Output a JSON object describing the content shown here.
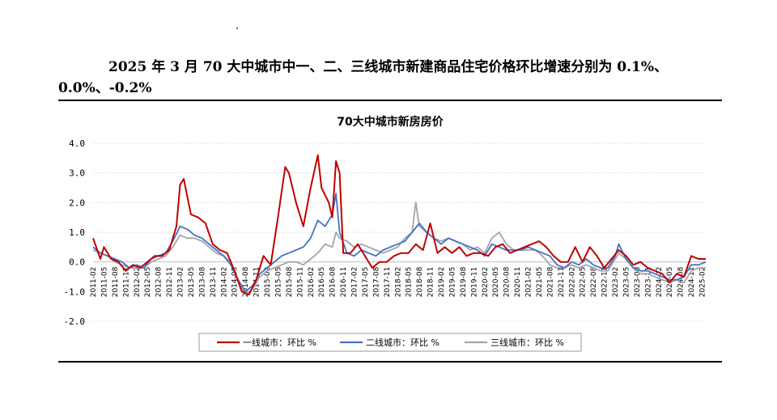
{
  "headline": {
    "line1": "2025 年 3 月 70 大中城市中一、二、三线城市新建商品住宅价格环比增速分别为 0.1%、",
    "line2": "0.0%、-0.2%"
  },
  "colors": {
    "tier1": "#c00000",
    "tier2": "#4472c4",
    "tier3": "#a5a5a5",
    "grid": "#d9d9d9"
  },
  "chart_data": {
    "type": "line",
    "title": "70大中城市新房房价",
    "ylim": [
      -2.0,
      4.0
    ],
    "yticks": [
      "4.0",
      "3.0",
      "2.0",
      "1.0",
      "0.0",
      "-1.0",
      "-2.0"
    ],
    "ytick_values": [
      4,
      3,
      2,
      1,
      0,
      -1,
      -2
    ],
    "xticks": [
      "2011-02",
      "2011-05",
      "2011-08",
      "2011-11",
      "2012-02",
      "2012-05",
      "2012-08",
      "2012-11",
      "2013-02",
      "2013-05",
      "2013-08",
      "2013-11",
      "2014-02",
      "2014-05",
      "2014-08",
      "2014-11",
      "2015-02",
      "2015-05",
      "2015-08",
      "2015-11",
      "2016-02",
      "2016-05",
      "2016-08",
      "2016-11",
      "2017-02",
      "2017-05",
      "2017-08",
      "2017-11",
      "2018-02",
      "2018-05",
      "2018-08",
      "2018-11",
      "2019-02",
      "2019-05",
      "2019-08",
      "2019-11",
      "2020-02",
      "2020-05",
      "2020-08",
      "2020-11",
      "2021-02",
      "2021-05",
      "2021-08",
      "2021-11",
      "2022-02",
      "2022-05",
      "2022-08",
      "2022-11",
      "2023-02",
      "2023-05",
      "2023-08",
      "2023-11",
      "2024-02",
      "2024-05",
      "2024-08",
      "2024-11",
      "2025-02"
    ],
    "x_start": "2011-02",
    "x_end": "2025-03",
    "grid": "horizontal",
    "legend_position": "bottom",
    "series": [
      {
        "name": "一线城市：环比 %",
        "points": [
          [
            "2011-02",
            0.8
          ],
          [
            "2011-04",
            0.1
          ],
          [
            "2011-05",
            0.5
          ],
          [
            "2011-07",
            0.1
          ],
          [
            "2011-09",
            0.0
          ],
          [
            "2011-11",
            -0.3
          ],
          [
            "2012-01",
            -0.1
          ],
          [
            "2012-03",
            -0.2
          ],
          [
            "2012-05",
            0.0
          ],
          [
            "2012-07",
            0.2
          ],
          [
            "2012-09",
            0.2
          ],
          [
            "2012-11",
            0.4
          ],
          [
            "2013-01",
            1.2
          ],
          [
            "2013-02",
            2.6
          ],
          [
            "2013-03",
            2.8
          ],
          [
            "2013-05",
            1.6
          ],
          [
            "2013-07",
            1.5
          ],
          [
            "2013-09",
            1.3
          ],
          [
            "2013-11",
            0.6
          ],
          [
            "2014-01",
            0.4
          ],
          [
            "2014-03",
            0.3
          ],
          [
            "2014-05",
            -0.3
          ],
          [
            "2014-07",
            -1.0
          ],
          [
            "2014-09",
            -1.1
          ],
          [
            "2014-11",
            -0.6
          ],
          [
            "2015-01",
            0.2
          ],
          [
            "2015-03",
            -0.1
          ],
          [
            "2015-05",
            1.5
          ],
          [
            "2015-07",
            3.2
          ],
          [
            "2015-08",
            3.0
          ],
          [
            "2015-10",
            2.0
          ],
          [
            "2015-12",
            1.2
          ],
          [
            "2016-02",
            2.5
          ],
          [
            "2016-04",
            3.6
          ],
          [
            "2016-05",
            2.5
          ],
          [
            "2016-07",
            2.0
          ],
          [
            "2016-08",
            1.5
          ],
          [
            "2016-09",
            3.4
          ],
          [
            "2016-10",
            3.0
          ],
          [
            "2016-11",
            0.3
          ],
          [
            "2017-01",
            0.3
          ],
          [
            "2017-03",
            0.6
          ],
          [
            "2017-05",
            0.2
          ],
          [
            "2017-07",
            -0.2
          ],
          [
            "2017-09",
            0.0
          ],
          [
            "2017-11",
            0.0
          ],
          [
            "2018-01",
            0.2
          ],
          [
            "2018-03",
            0.3
          ],
          [
            "2018-05",
            0.3
          ],
          [
            "2018-07",
            0.6
          ],
          [
            "2018-09",
            0.4
          ],
          [
            "2018-11",
            1.3
          ],
          [
            "2019-01",
            0.3
          ],
          [
            "2019-03",
            0.5
          ],
          [
            "2019-05",
            0.3
          ],
          [
            "2019-07",
            0.5
          ],
          [
            "2019-09",
            0.2
          ],
          [
            "2019-11",
            0.3
          ],
          [
            "2020-01",
            0.3
          ],
          [
            "2020-03",
            0.2
          ],
          [
            "2020-05",
            0.5
          ],
          [
            "2020-07",
            0.6
          ],
          [
            "2020-09",
            0.3
          ],
          [
            "2020-11",
            0.4
          ],
          [
            "2021-01",
            0.5
          ],
          [
            "2021-03",
            0.6
          ],
          [
            "2021-05",
            0.7
          ],
          [
            "2021-07",
            0.5
          ],
          [
            "2021-09",
            0.2
          ],
          [
            "2021-11",
            0.0
          ],
          [
            "2022-01",
            0.0
          ],
          [
            "2022-03",
            0.5
          ],
          [
            "2022-05",
            0.0
          ],
          [
            "2022-07",
            0.5
          ],
          [
            "2022-09",
            0.2
          ],
          [
            "2022-11",
            -0.2
          ],
          [
            "2023-01",
            0.1
          ],
          [
            "2023-03",
            0.4
          ],
          [
            "2023-05",
            0.2
          ],
          [
            "2023-07",
            -0.1
          ],
          [
            "2023-09",
            0.0
          ],
          [
            "2023-11",
            -0.2
          ],
          [
            "2024-01",
            -0.3
          ],
          [
            "2024-03",
            -0.4
          ],
          [
            "2024-05",
            -0.7
          ],
          [
            "2024-07",
            -0.4
          ],
          [
            "2024-09",
            -0.5
          ],
          [
            "2024-11",
            0.2
          ],
          [
            "2025-01",
            0.1
          ],
          [
            "2025-03",
            0.1
          ]
        ]
      },
      {
        "name": "二线城市：环比 %",
        "points": [
          [
            "2011-02",
            0.5
          ],
          [
            "2011-04",
            0.3
          ],
          [
            "2011-06",
            0.2
          ],
          [
            "2011-08",
            0.1
          ],
          [
            "2011-10",
            0.0
          ],
          [
            "2011-12",
            -0.2
          ],
          [
            "2012-02",
            -0.1
          ],
          [
            "2012-04",
            -0.2
          ],
          [
            "2012-06",
            0.1
          ],
          [
            "2012-08",
            0.2
          ],
          [
            "2012-10",
            0.3
          ],
          [
            "2012-12",
            0.7
          ],
          [
            "2013-02",
            1.2
          ],
          [
            "2013-04",
            1.1
          ],
          [
            "2013-06",
            0.9
          ],
          [
            "2013-08",
            0.8
          ],
          [
            "2013-10",
            0.6
          ],
          [
            "2013-12",
            0.4
          ],
          [
            "2014-02",
            0.2
          ],
          [
            "2014-04",
            -0.1
          ],
          [
            "2014-06",
            -0.6
          ],
          [
            "2014-08",
            -1.0
          ],
          [
            "2014-10",
            -0.8
          ],
          [
            "2014-12",
            -0.4
          ],
          [
            "2015-02",
            -0.2
          ],
          [
            "2015-04",
            0.0
          ],
          [
            "2015-06",
            0.2
          ],
          [
            "2015-08",
            0.3
          ],
          [
            "2015-10",
            0.4
          ],
          [
            "2015-12",
            0.5
          ],
          [
            "2016-02",
            0.8
          ],
          [
            "2016-04",
            1.4
          ],
          [
            "2016-06",
            1.2
          ],
          [
            "2016-08",
            1.6
          ],
          [
            "2016-09",
            2.3
          ],
          [
            "2016-10",
            1.0
          ],
          [
            "2016-12",
            0.3
          ],
          [
            "2017-02",
            0.2
          ],
          [
            "2017-04",
            0.4
          ],
          [
            "2017-06",
            0.3
          ],
          [
            "2017-08",
            0.2
          ],
          [
            "2017-10",
            0.4
          ],
          [
            "2017-12",
            0.5
          ],
          [
            "2018-02",
            0.6
          ],
          [
            "2018-04",
            0.7
          ],
          [
            "2018-06",
            1.0
          ],
          [
            "2018-08",
            1.3
          ],
          [
            "2018-10",
            1.0
          ],
          [
            "2018-12",
            0.8
          ],
          [
            "2019-02",
            0.6
          ],
          [
            "2019-04",
            0.8
          ],
          [
            "2019-06",
            0.7
          ],
          [
            "2019-08",
            0.6
          ],
          [
            "2019-10",
            0.5
          ],
          [
            "2019-12",
            0.4
          ],
          [
            "2020-02",
            0.2
          ],
          [
            "2020-04",
            0.6
          ],
          [
            "2020-06",
            0.5
          ],
          [
            "2020-08",
            0.4
          ],
          [
            "2020-10",
            0.4
          ],
          [
            "2020-12",
            0.4
          ],
          [
            "2021-02",
            0.5
          ],
          [
            "2021-04",
            0.4
          ],
          [
            "2021-06",
            0.3
          ],
          [
            "2021-08",
            0.2
          ],
          [
            "2021-10",
            -0.1
          ],
          [
            "2021-12",
            -0.2
          ],
          [
            "2022-02",
            0.0
          ],
          [
            "2022-04",
            -0.1
          ],
          [
            "2022-06",
            0.1
          ],
          [
            "2022-08",
            -0.1
          ],
          [
            "2022-10",
            -0.2
          ],
          [
            "2022-12",
            -0.2
          ],
          [
            "2023-02",
            0.2
          ],
          [
            "2023-03",
            0.6
          ],
          [
            "2023-05",
            0.1
          ],
          [
            "2023-07",
            -0.2
          ],
          [
            "2023-09",
            -0.3
          ],
          [
            "2023-11",
            -0.3
          ],
          [
            "2024-01",
            -0.4
          ],
          [
            "2024-03",
            -0.5
          ],
          [
            "2024-05",
            -0.6
          ],
          [
            "2024-07",
            -0.6
          ],
          [
            "2024-09",
            -0.5
          ],
          [
            "2024-11",
            -0.1
          ],
          [
            "2025-01",
            -0.1
          ],
          [
            "2025-03",
            0.0
          ]
        ]
      },
      {
        "name": "三线城市：环比 %",
        "points": [
          [
            "2011-02",
            0.4
          ],
          [
            "2011-04",
            0.3
          ],
          [
            "2011-06",
            0.2
          ],
          [
            "2011-08",
            0.0
          ],
          [
            "2011-10",
            -0.1
          ],
          [
            "2011-12",
            -0.2
          ],
          [
            "2012-02",
            -0.2
          ],
          [
            "2012-04",
            -0.2
          ],
          [
            "2012-06",
            0.0
          ],
          [
            "2012-08",
            0.1
          ],
          [
            "2012-10",
            0.2
          ],
          [
            "2012-12",
            0.5
          ],
          [
            "2013-02",
            0.9
          ],
          [
            "2013-04",
            0.8
          ],
          [
            "2013-06",
            0.8
          ],
          [
            "2013-08",
            0.7
          ],
          [
            "2013-10",
            0.5
          ],
          [
            "2013-12",
            0.3
          ],
          [
            "2014-02",
            0.2
          ],
          [
            "2014-04",
            0.0
          ],
          [
            "2014-06",
            -0.6
          ],
          [
            "2014-08",
            -1.1
          ],
          [
            "2014-10",
            -0.9
          ],
          [
            "2014-12",
            -0.5
          ],
          [
            "2015-02",
            -0.3
          ],
          [
            "2015-04",
            -0.2
          ],
          [
            "2015-06",
            -0.1
          ],
          [
            "2015-08",
            0.0
          ],
          [
            "2015-10",
            0.0
          ],
          [
            "2015-12",
            -0.1
          ],
          [
            "2016-02",
            0.1
          ],
          [
            "2016-04",
            0.3
          ],
          [
            "2016-06",
            0.6
          ],
          [
            "2016-08",
            0.5
          ],
          [
            "2016-09",
            1.0
          ],
          [
            "2016-10",
            0.8
          ],
          [
            "2016-12",
            0.7
          ],
          [
            "2017-02",
            0.5
          ],
          [
            "2017-04",
            0.6
          ],
          [
            "2017-06",
            0.5
          ],
          [
            "2017-08",
            0.4
          ],
          [
            "2017-10",
            0.3
          ],
          [
            "2017-12",
            0.4
          ],
          [
            "2018-02",
            0.5
          ],
          [
            "2018-04",
            0.8
          ],
          [
            "2018-06",
            1.0
          ],
          [
            "2018-07",
            2.0
          ],
          [
            "2018-08",
            1.2
          ],
          [
            "2018-10",
            1.0
          ],
          [
            "2018-12",
            0.8
          ],
          [
            "2019-02",
            0.7
          ],
          [
            "2019-04",
            0.8
          ],
          [
            "2019-06",
            0.7
          ],
          [
            "2019-08",
            0.6
          ],
          [
            "2019-10",
            0.4
          ],
          [
            "2019-12",
            0.5
          ],
          [
            "2020-02",
            0.3
          ],
          [
            "2020-04",
            0.8
          ],
          [
            "2020-06",
            1.0
          ],
          [
            "2020-08",
            0.6
          ],
          [
            "2020-10",
            0.4
          ],
          [
            "2020-12",
            0.4
          ],
          [
            "2021-02",
            0.4
          ],
          [
            "2021-04",
            0.4
          ],
          [
            "2021-06",
            0.2
          ],
          [
            "2021-08",
            -0.1
          ],
          [
            "2021-10",
            -0.2
          ],
          [
            "2021-12",
            -0.2
          ],
          [
            "2022-02",
            -0.1
          ],
          [
            "2022-04",
            -0.2
          ],
          [
            "2022-06",
            -0.1
          ],
          [
            "2022-08",
            -0.2
          ],
          [
            "2022-10",
            -0.3
          ],
          [
            "2022-12",
            -0.3
          ],
          [
            "2023-02",
            0.1
          ],
          [
            "2023-03",
            0.3
          ],
          [
            "2023-05",
            0.1
          ],
          [
            "2023-07",
            -0.2
          ],
          [
            "2023-09",
            -0.4
          ],
          [
            "2023-11",
            -0.4
          ],
          [
            "2024-01",
            -0.5
          ],
          [
            "2024-03",
            -0.6
          ],
          [
            "2024-05",
            -0.7
          ],
          [
            "2024-07",
            -0.6
          ],
          [
            "2024-09",
            -0.7
          ],
          [
            "2024-11",
            -0.3
          ],
          [
            "2025-01",
            -0.2
          ],
          [
            "2025-03",
            -0.2
          ]
        ]
      }
    ]
  }
}
